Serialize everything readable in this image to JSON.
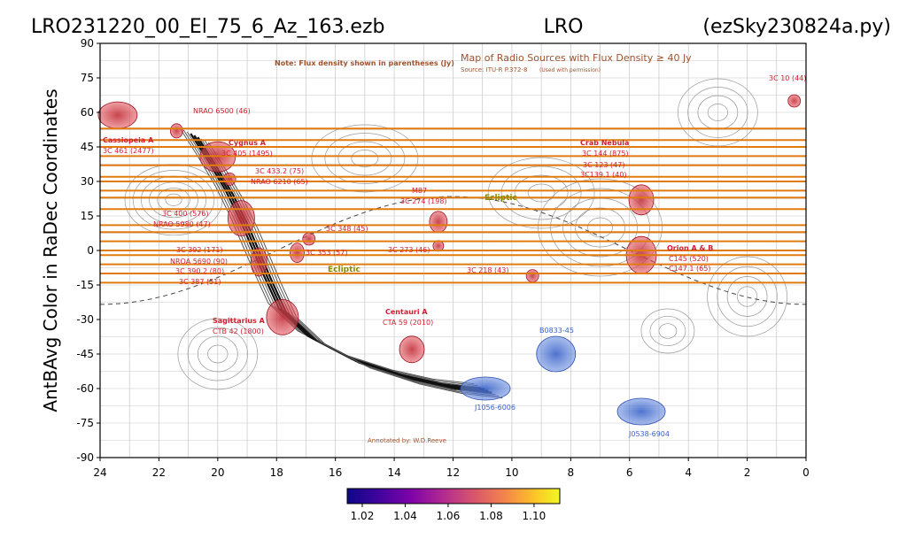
{
  "title": {
    "left": "LRO231220_00_El_75_6_Az_163.ezb",
    "center": "LRO",
    "right": "(ezSky230824a.py)"
  },
  "chart_data": {
    "type": "heatmap",
    "ylabel": "AntBAvg Color in RaDec Coordinates",
    "xlim": [
      24,
      0
    ],
    "ylim": [
      -90,
      90
    ],
    "x_ticks": [
      "24",
      "22",
      "20",
      "18",
      "16",
      "14",
      "12",
      "10",
      "8",
      "6",
      "4",
      "2",
      "0"
    ],
    "y_ticks": [
      "90",
      "75",
      "60",
      "45",
      "30",
      "15",
      "0",
      "-15",
      "-30",
      "-45",
      "-60",
      "-75",
      "-90"
    ],
    "scan_declinations": [
      53,
      48,
      45,
      41,
      37,
      32,
      30,
      26,
      23,
      18,
      11,
      8,
      4,
      0,
      -2,
      -6,
      -10,
      -14
    ],
    "scan_color": "#e07b10",
    "colorbar": {
      "colormap": "plasma",
      "ticks": [
        "1.02",
        "1.04",
        "1.06",
        "1.08",
        "1.10"
      ],
      "range": [
        1.013,
        1.112
      ]
    },
    "background_map": {
      "title": "Map of Radio Sources with Flux Density ≥ 40 Jy",
      "note": "Note: Flux density shown in parentheses (Jy)",
      "source": "Source: ITU-R P.372-8",
      "source_sub": "(Used with permission)",
      "annotated_by": "Annotated by: W.D.Reeve",
      "ecliptic_label": "Ecliptic",
      "ecliptic_label2": "Ecliptic",
      "sources": [
        {
          "label": "3C 10 (44)",
          "ra": 0.4,
          "dec": 65,
          "color": "red"
        },
        {
          "label": "NRAO 6500 (46)",
          "ra": 21.4,
          "dec": 52,
          "color": "red"
        },
        {
          "label": "Cassiopeia A",
          "ra": 23.4,
          "dec": 58.8,
          "color": "red"
        },
        {
          "label": "3C 461 (2477)",
          "ra": 23.4,
          "dec": 58.8,
          "color": "red"
        },
        {
          "label": "Cygnus A",
          "ra": 20.0,
          "dec": 40.7,
          "color": "red"
        },
        {
          "label": "3C 405 (1495)",
          "ra": 20.0,
          "dec": 40.7,
          "color": "red"
        },
        {
          "label": "3C 433.2 (75)",
          "ra": 19.7,
          "dec": 31,
          "color": "red"
        },
        {
          "label": "NRAO 6210 (65)",
          "ra": 19.7,
          "dec": 31,
          "color": "red"
        },
        {
          "label": "3C 400 (576)",
          "ra": 19.2,
          "dec": 14,
          "color": "red"
        },
        {
          "label": "NRAO 5980 (47)",
          "ra": 19.0,
          "dec": 9,
          "color": "red"
        },
        {
          "label": "3C 348 (45)",
          "ra": 16.9,
          "dec": 5,
          "color": "red"
        },
        {
          "label": "3C 392 (171)",
          "ra": 18.9,
          "dec": 1,
          "color": "red"
        },
        {
          "label": "3C 353 (57)",
          "ra": 17.3,
          "dec": -1,
          "color": "red"
        },
        {
          "label": "NROA 5690 (90)",
          "ra": 18.7,
          "dec": -4,
          "color": "red"
        },
        {
          "label": "3C 390.2 (80)",
          "ra": 18.5,
          "dec": -8,
          "color": "red"
        },
        {
          "label": "3C 387 (51)",
          "ra": 18.5,
          "dec": -13,
          "color": "red"
        },
        {
          "label": "Sagittarius A",
          "ra": 17.8,
          "dec": -29,
          "color": "red"
        },
        {
          "label": "CTB 42 (1800)",
          "ra": 17.8,
          "dec": -29,
          "color": "red"
        },
        {
          "label": "M87",
          "ra": 12.5,
          "dec": 12.4,
          "color": "red"
        },
        {
          "label": "3C 274 (198)",
          "ra": 12.5,
          "dec": 12.4,
          "color": "red"
        },
        {
          "label": "3C 273 (46)",
          "ra": 12.5,
          "dec": 2,
          "color": "red"
        },
        {
          "label": "3C 218 (43)",
          "ra": 9.3,
          "dec": -12,
          "color": "red"
        },
        {
          "label": "Centauri A",
          "ra": 13.4,
          "dec": -43,
          "color": "red"
        },
        {
          "label": "CTA 59 (2010)",
          "ra": 13.4,
          "dec": -43,
          "color": "red"
        },
        {
          "label": "Crab Nebula",
          "ra": 5.6,
          "dec": 22,
          "color": "red"
        },
        {
          "label": "3C 144 (875)",
          "ra": 5.6,
          "dec": 22,
          "color": "red"
        },
        {
          "label": "3C 123 (47)",
          "ra": 4.6,
          "dec": 30,
          "color": "red"
        },
        {
          "label": "3C139.1 (40)",
          "ra": 5.3,
          "dec": 26,
          "color": "red"
        },
        {
          "label": "Orion A & B",
          "ra": 5.6,
          "dec": -4,
          "color": "red"
        },
        {
          "label": "C145 (520)",
          "ra": 5.6,
          "dec": -4,
          "color": "red"
        },
        {
          "label": "C147.1 (65)",
          "ra": 5.6,
          "dec": -4,
          "color": "red"
        },
        {
          "label": "B0833-45",
          "ra": 8.5,
          "dec": -45,
          "color": "blue"
        },
        {
          "label": "J1056-6006",
          "ra": 10.9,
          "dec": -60,
          "color": "blue"
        },
        {
          "label": "J0538-6904",
          "ra": 5.6,
          "dec": -69,
          "color": "blue"
        }
      ]
    }
  }
}
